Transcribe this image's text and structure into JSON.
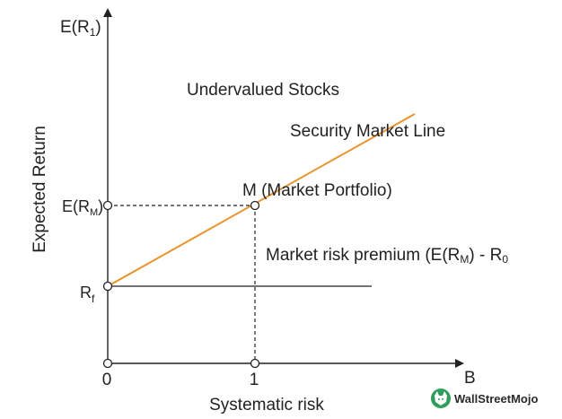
{
  "diagram": {
    "y_axis_top_label": "E(R",
    "y_axis_top_label_sub": "1",
    "y_axis_top_label_close": ")",
    "x_axis_end_label": "B",
    "y_axis_title": "Expected Return",
    "x_axis_title": "Systematic risk",
    "y_tick_market_return": "E(R",
    "y_tick_market_return_sub": "M",
    "y_tick_market_return_close": ")",
    "y_tick_risk_free": "R",
    "y_tick_risk_free_sub": "f",
    "x_tick_zero": "0",
    "x_tick_one": "1",
    "region_label": "Undervalued Stocks",
    "line_label": "Security Market Line",
    "point_label": "M (Market Portfolio)",
    "premium_label_main": "Market risk premium (E(R",
    "premium_label_sub_m": "M",
    "premium_label_mid": ") - R",
    "premium_label_sub_zero": "0"
  },
  "colors": {
    "sml_line": "#e8952e",
    "axis": "#222222",
    "logo_green": "#2e9e5b"
  },
  "logo": {
    "text": "WallStreetMojo",
    "icon": "wallstreetmojo-bull-icon"
  }
}
